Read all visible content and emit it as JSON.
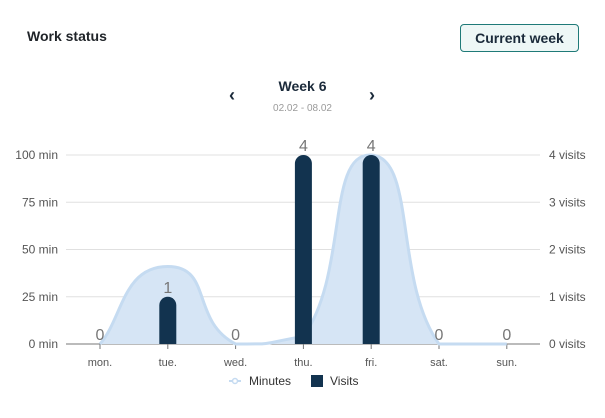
{
  "header": {
    "title": "Work status",
    "current_week_label": "Current week"
  },
  "week_nav": {
    "week_label": "Week 6",
    "date_range": "02.02 - 08.02",
    "prev_icon": "chevron-left-icon",
    "next_icon": "chevron-right-icon"
  },
  "chart_data": {
    "type": "bar+area",
    "categories": [
      "mon.",
      "tue.",
      "wed.",
      "thu.",
      "fri.",
      "sat.",
      "sun."
    ],
    "series": [
      {
        "name": "Minutes",
        "type": "area",
        "axis": "left",
        "color": "#c5dbf1",
        "values": [
          0,
          41,
          0,
          4,
          100,
          0,
          0
        ]
      },
      {
        "name": "Visits",
        "type": "bar",
        "axis": "right",
        "color": "#12334f",
        "values": [
          0,
          1,
          0,
          4,
          4,
          0,
          0
        ]
      }
    ],
    "left_axis": {
      "ticks": [
        0,
        25,
        50,
        75,
        100
      ],
      "tick_labels": [
        "0 min",
        "25 min",
        "50 min",
        "75 min",
        "100 min"
      ],
      "range": [
        0,
        100
      ]
    },
    "right_axis": {
      "ticks": [
        0,
        1,
        2,
        3,
        4
      ],
      "tick_labels": [
        "0 visits",
        "1 visits",
        "2 visits",
        "3 visits",
        "4 visits"
      ],
      "range": [
        0,
        4
      ]
    },
    "data_labels": [
      "0",
      "1",
      "0",
      "4",
      "4",
      "0",
      "0"
    ],
    "legend": {
      "placement": "bottom",
      "entries": [
        "Minutes",
        "Visits"
      ]
    },
    "grid": true
  }
}
